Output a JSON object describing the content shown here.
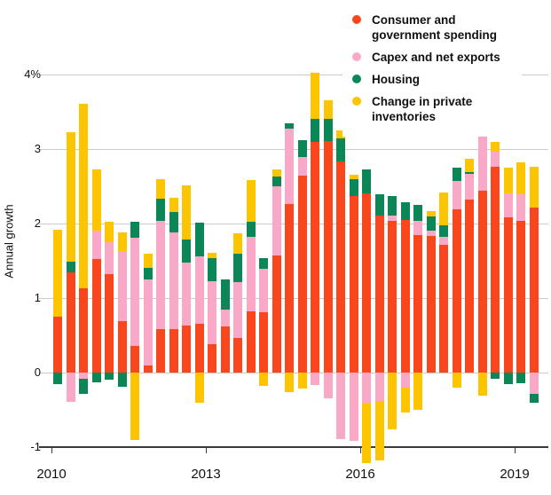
{
  "chart_data": {
    "type": "bar",
    "stacked": true,
    "ylabel": "Annual growth",
    "grid": true,
    "legend_position": "top-right",
    "ylim": [
      -1.45,
      4.3
    ],
    "y_ticks": [
      {
        "label": "4%",
        "value": 4
      },
      {
        "label": "3",
        "value": 3
      },
      {
        "label": "2",
        "value": 2
      },
      {
        "label": "1",
        "value": 1
      },
      {
        "label": "0",
        "value": 0
      },
      {
        "label": "-1",
        "value": -1
      }
    ],
    "x_tick_labels": [
      "2010",
      "2013",
      "2016",
      "2019"
    ],
    "categories": [
      "2010 Q1",
      "2010 Q2",
      "2010 Q3",
      "2010 Q4",
      "2011 Q1",
      "2011 Q2",
      "2011 Q3",
      "2011 Q4",
      "2012 Q1",
      "2012 Q2",
      "2012 Q3",
      "2012 Q4",
      "2013 Q1",
      "2013 Q2",
      "2013 Q3",
      "2013 Q4",
      "2014 Q1",
      "2014 Q2",
      "2014 Q3",
      "2014 Q4",
      "2015 Q1",
      "2015 Q2",
      "2015 Q3",
      "2015 Q4",
      "2016 Q1",
      "2016 Q2",
      "2016 Q3",
      "2016 Q4",
      "2017 Q1",
      "2017 Q2",
      "2017 Q3",
      "2017 Q4",
      "2018 Q1",
      "2018 Q2",
      "2018 Q3",
      "2018 Q4",
      "2019 Q1",
      "2019 Q2"
    ],
    "series": [
      {
        "name": "Consumer and government spending",
        "color": "#fa461c",
        "values": [
          0.75,
          1.34,
          1.13,
          1.52,
          1.32,
          0.69,
          0.36,
          0.1,
          0.58,
          0.58,
          0.63,
          0.66,
          0.38,
          0.62,
          0.46,
          0.82,
          0.81,
          1.57,
          2.26,
          2.64,
          3.1,
          3.11,
          2.83,
          2.37,
          2.41,
          2.11,
          2.04,
          2.05,
          1.85,
          1.83,
          1.72,
          2.19,
          2.32,
          2.44,
          2.76,
          2.08,
          2.04,
          2.22
        ]
      },
      {
        "name": "Capex and net exports",
        "color": "#f9a9c7",
        "values": [
          0,
          -0.39,
          -0.08,
          0.38,
          0.43,
          0.94,
          1.45,
          1.15,
          1.46,
          1.3,
          0.85,
          0.9,
          0.85,
          0.23,
          0.76,
          1.0,
          0.58,
          0.93,
          1.01,
          0.25,
          -0.17,
          -0.34,
          -0.89,
          -0.92,
          -0.4,
          -0.38,
          0.07,
          -0.2,
          0.19,
          0.07,
          0.1,
          0.38,
          0.35,
          0.97,
          0.2,
          0.33,
          0.35,
          -0.28
        ]
      },
      {
        "name": "Housing",
        "color": "#0a8657",
        "values": [
          -0.16,
          0.15,
          -0.2,
          -0.13,
          -0.1,
          -0.19,
          0.21,
          0.16,
          0.29,
          0.28,
          0.3,
          0.45,
          0.3,
          0.4,
          0.38,
          0.2,
          0.14,
          0.13,
          0.08,
          0.23,
          0.31,
          0.3,
          0.31,
          0.23,
          0.32,
          0.28,
          0.26,
          0.23,
          0.21,
          0.2,
          0.16,
          0.18,
          0.02,
          0,
          -0.08,
          -0.16,
          -0.14,
          -0.13
        ]
      },
      {
        "name": "Change in private inventories",
        "color": "#fdc400",
        "values": [
          1.17,
          1.74,
          2.48,
          0.83,
          0.27,
          0.25,
          -0.9,
          0.19,
          0.27,
          0.18,
          0.73,
          -0.4,
          0.08,
          0,
          0.27,
          0.56,
          -0.18,
          0.1,
          -0.26,
          -0.22,
          0.61,
          0.25,
          0.11,
          0.06,
          -0.82,
          -0.8,
          -0.76,
          -0.34,
          -0.5,
          0.07,
          0.44,
          -0.2,
          0.18,
          -0.31,
          0.14,
          0.34,
          0.43,
          0.54
        ]
      }
    ],
    "colors": {
      "background": "#ffffff",
      "gridline": "#cbcbcb",
      "axis": "#3a3a3a",
      "text": "#111111"
    }
  }
}
